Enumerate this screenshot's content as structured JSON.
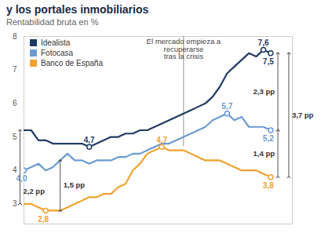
{
  "chart_data": {
    "type": "line",
    "title": "y los portales inmobiliarios",
    "subtitle": "Rentabilidad bruta en %",
    "xlim": [
      0,
      37
    ],
    "ylim": [
      2.4,
      8
    ],
    "yticks": [
      3,
      4,
      5,
      6,
      7,
      8
    ],
    "grid": false,
    "tick_labels": "y",
    "legend": "top-left",
    "series": [
      {
        "name": "Idealista",
        "color": "#1f3b63",
        "values": [
          5.2,
          5.2,
          4.9,
          4.9,
          4.8,
          4.8,
          4.8,
          4.8,
          4.8,
          4.7,
          4.8,
          4.9,
          5.0,
          5.0,
          5.1,
          5.1,
          5.2,
          5.2,
          5.3,
          5.4,
          5.5,
          5.6,
          5.7,
          5.8,
          5.9,
          6.0,
          6.2,
          6.5,
          6.9,
          7.1,
          7.3,
          7.5,
          7.4,
          7.6,
          7.5
        ],
        "value_labels": [
          null,
          null,
          null,
          null,
          null,
          null,
          null,
          null,
          null,
          "4,7",
          null,
          null,
          null,
          null,
          null,
          null,
          null,
          null,
          null,
          null,
          null,
          null,
          null,
          null,
          null,
          null,
          null,
          null,
          null,
          null,
          null,
          null,
          null,
          "7,6",
          "7,5"
        ]
      },
      {
        "name": "Fotocasa",
        "color": "#6b9bd2",
        "values": [
          4.0,
          4.1,
          4.2,
          4.0,
          4.1,
          4.3,
          4.5,
          4.3,
          4.3,
          4.2,
          4.3,
          4.3,
          4.3,
          4.4,
          4.4,
          4.5,
          4.5,
          4.6,
          4.7,
          4.8,
          4.8,
          4.9,
          5.0,
          5.1,
          5.2,
          5.3,
          5.5,
          5.6,
          5.7,
          5.5,
          5.6,
          5.3,
          5.3,
          5.3,
          5.2
        ],
        "value_labels": [
          "4,0",
          null,
          null,
          null,
          null,
          null,
          null,
          null,
          null,
          null,
          null,
          null,
          null,
          null,
          null,
          null,
          null,
          null,
          null,
          null,
          null,
          null,
          null,
          null,
          null,
          null,
          null,
          null,
          "5,7",
          null,
          null,
          null,
          null,
          null,
          "5,2"
        ]
      },
      {
        "name": "Banco de España",
        "color": "#f0a22e",
        "values": [
          3.0,
          3.0,
          2.9,
          2.8,
          2.8,
          2.8,
          2.9,
          3.0,
          3.1,
          3.2,
          3.2,
          3.3,
          3.3,
          3.5,
          3.6,
          4.0,
          4.2,
          4.5,
          4.6,
          4.7,
          4.6,
          4.6,
          4.6,
          4.5,
          4.4,
          4.3,
          4.3,
          4.3,
          4.2,
          4.1,
          4.0,
          4.0,
          4.0,
          3.9,
          3.8
        ],
        "value_labels": [
          null,
          null,
          null,
          "2,8",
          null,
          null,
          null,
          null,
          null,
          null,
          null,
          null,
          null,
          null,
          null,
          null,
          null,
          null,
          null,
          "4,7",
          null,
          null,
          null,
          null,
          null,
          null,
          null,
          null,
          null,
          null,
          null,
          null,
          null,
          null,
          "3,8"
        ]
      }
    ],
    "annotations": [
      {
        "text": "El mercado empieza a\nrecuperarse\ntras la crisis",
        "x": 22,
        "series": "Idealista"
      }
    ],
    "differences": [
      {
        "label": "2,2 pp",
        "x": 0,
        "from": "Banco de España",
        "to": "Idealista"
      },
      {
        "label": "1,5 pp",
        "x": 5,
        "from": "Banco de España",
        "to": "Fotocasa"
      },
      {
        "label": "2,3 pp",
        "x": 34,
        "from": "Fotocasa",
        "to": "Idealista"
      },
      {
        "label": "1,4 pp",
        "x": 34,
        "from": "Banco de España",
        "to": "Fotocasa"
      },
      {
        "label": "3,7 pp",
        "x": 34,
        "from": "Banco de España",
        "to": "Idealista"
      }
    ]
  }
}
